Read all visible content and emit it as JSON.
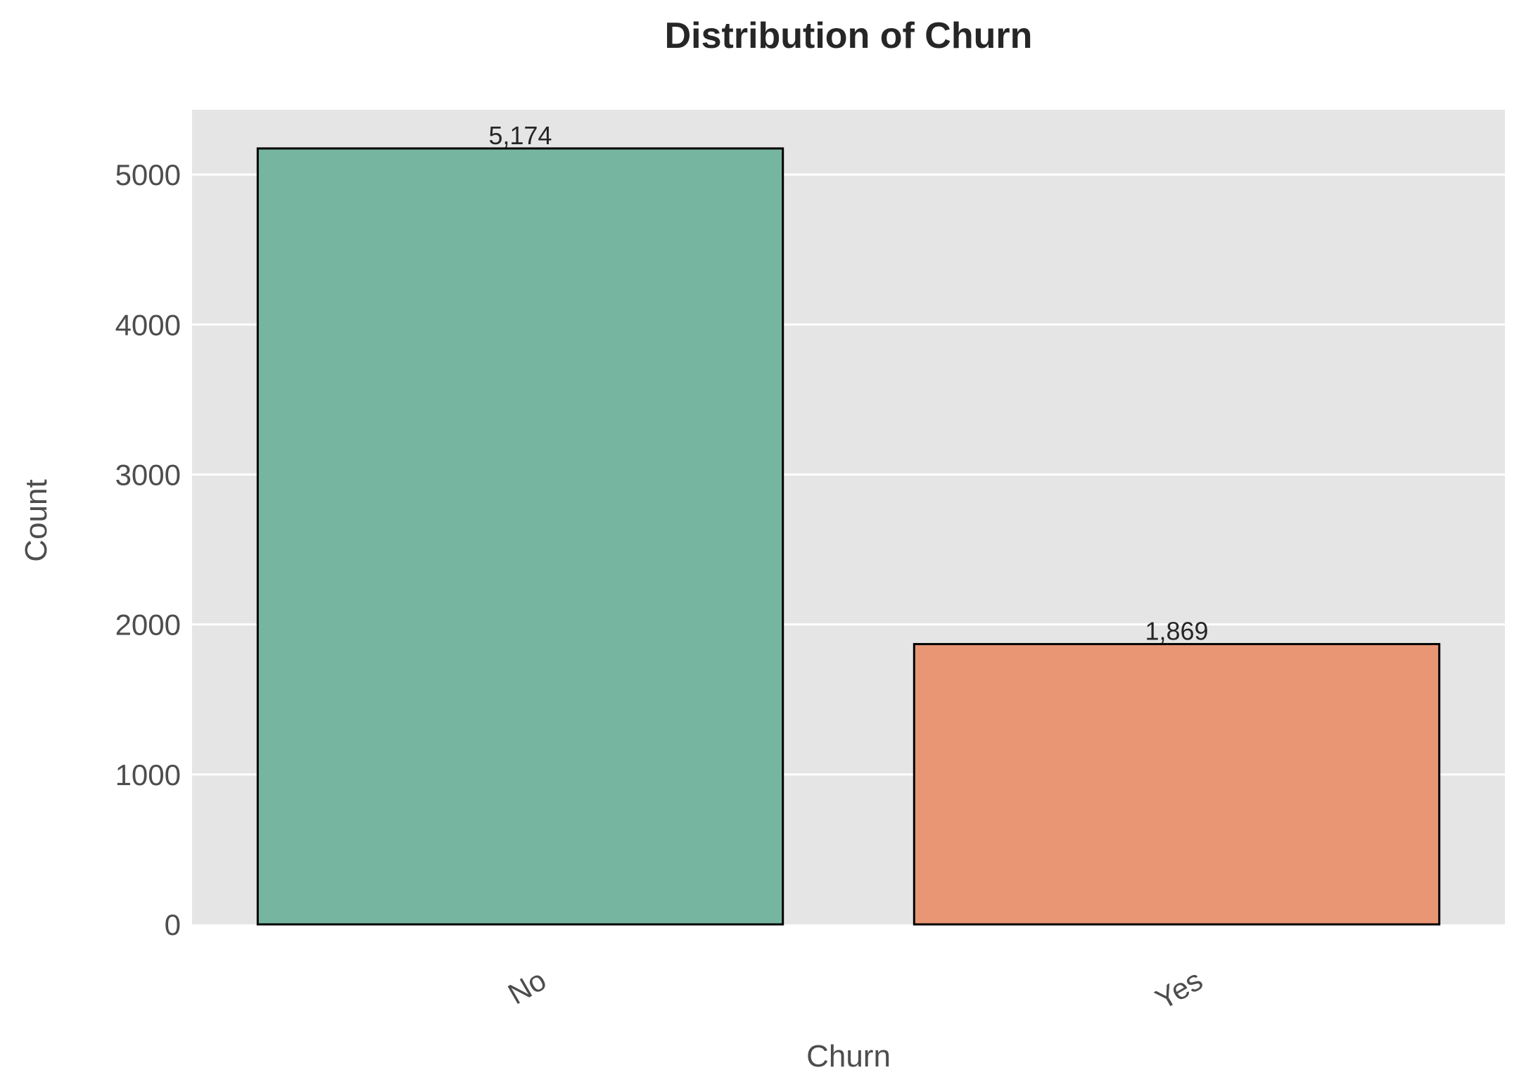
{
  "chart_data": {
    "type": "bar",
    "title": "Distribution of Churn",
    "xlabel": "Churn",
    "ylabel": "Count",
    "categories": [
      "No",
      "Yes"
    ],
    "values": [
      5174,
      1869
    ],
    "value_labels": [
      "5,174",
      "1,869"
    ],
    "yticks": [
      0,
      1000,
      2000,
      3000,
      4000,
      5000
    ],
    "ytick_labels": [
      "0",
      "1000",
      "2000",
      "3000",
      "4000",
      "5000"
    ],
    "ylim": [
      0,
      5432
    ],
    "grid": true,
    "colors": {
      "bars": [
        "#76b6a1",
        "#e99675"
      ],
      "plot_background": "#e5e5e5",
      "grid": "#ffffff",
      "bar_edge": "#000000"
    }
  }
}
